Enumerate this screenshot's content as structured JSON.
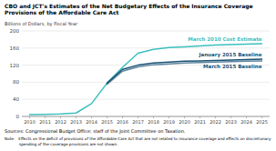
{
  "chart_data": {
    "type": "line",
    "title": "CBO and JCT's Estimates of the Net Budgetary Effects of the Insurance Coverage\nProvisions of the Affordable Care Act",
    "y_label": "Billions of Dollars, by Fiscal Year",
    "source": "Sources:   Congressional Budget Office; staff of the Joint Committee on Taxation.",
    "note": "Note:   Effects on the deficit of provisions of the Affordable Care Act that are not related to insurance coverage and effects on discretionary\n            spending of the coverage provisions are not shown.",
    "series": [
      {
        "name": "March 2010 Cost Estimate",
        "color": "#3dbfbf",
        "x": [
          2010,
          2011,
          2012,
          2013,
          2014,
          2015,
          2016,
          2017,
          2018,
          2019,
          2020,
          2021,
          2022,
          2023,
          2024,
          2025
        ],
        "values": [
          4,
          5,
          6,
          8,
          30,
          78,
          115,
          148,
          157,
          161,
          163,
          165,
          167,
          168,
          169,
          170
        ]
      },
      {
        "name": "January 2015 Baseline",
        "color": "#1a5276",
        "x": [
          2015,
          2016,
          2017,
          2018,
          2019,
          2020,
          2021,
          2022,
          2023,
          2024,
          2025
        ],
        "values": [
          78,
          110,
          120,
          125,
          127,
          129,
          130,
          131,
          132,
          133,
          134
        ]
      },
      {
        "name": "March 2015 Baseline",
        "color": "#1a5276",
        "x": [
          2015,
          2016,
          2017,
          2018,
          2019,
          2020,
          2021,
          2022,
          2023,
          2024,
          2025
        ],
        "values": [
          75,
          106,
          116,
          121,
          123,
          125,
          126,
          127,
          128,
          129,
          130
        ]
      }
    ],
    "xlim": [
      2009.5,
      2025.5
    ],
    "xticks": [
      2010,
      2011,
      2012,
      2013,
      2014,
      2015,
      2016,
      2017,
      2018,
      2019,
      2020,
      2021,
      2022,
      2023,
      2024,
      2025
    ],
    "ylim": [
      0,
      200
    ],
    "yticks": [
      0,
      40,
      80,
      120,
      160,
      200
    ],
    "grid": true
  }
}
